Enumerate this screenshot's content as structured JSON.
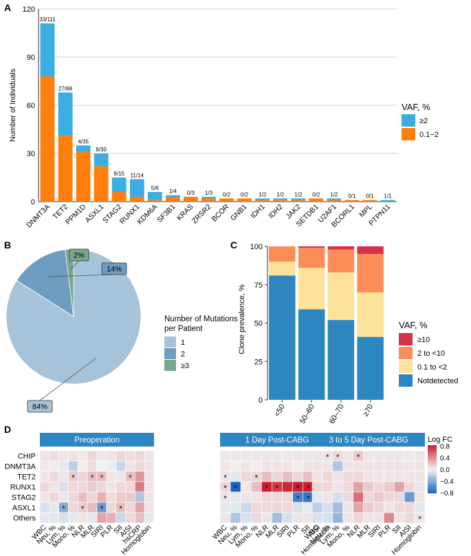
{
  "panels": {
    "a": "A",
    "b": "B",
    "c": "C",
    "d": "D"
  },
  "chart_data": [
    {
      "type": "bar",
      "stacked": true,
      "title": "",
      "xlabel": "",
      "ylabel": "Number of Individuals",
      "ylim": [
        0,
        120
      ],
      "yticks": [
        "0",
        "30",
        "60",
        "90",
        "120"
      ],
      "grid": true,
      "categories": [
        "DNMT3A",
        "TET2",
        "PPM1D",
        "ASXL1",
        "STAG2",
        "RUNX1",
        "KDM6A",
        "SF3B1",
        "KRAS",
        "ZRSR2",
        "BCOR",
        "GNB1",
        "IDH1",
        "IDH2",
        "JAK2",
        "SETDB1",
        "U2AF1",
        "BCORL1",
        "MPL",
        "PTPN11"
      ],
      "labels": [
        "33/111",
        "27/68",
        "4/35",
        "8/30",
        "9/15",
        "11/14",
        "5/6",
        "1/4",
        "0/3",
        "1/3",
        "0/2",
        "0/2",
        "1/2",
        "1/2",
        "1/2",
        "0/2",
        "1/2",
        "0/1",
        "0/1",
        "1/1"
      ],
      "series": [
        {
          "name": "0.1−2",
          "color": "#FF7F0E",
          "values": [
            78,
            41,
            31,
            22,
            6,
            3,
            1,
            3,
            3,
            2,
            2,
            2,
            1,
            1,
            1,
            2,
            1,
            1,
            1,
            0
          ]
        },
        {
          "name": "≥2",
          "color": "#3AAEE0",
          "values": [
            33,
            27,
            4,
            8,
            9,
            11,
            5,
            1,
            0,
            1,
            0,
            0,
            1,
            1,
            1,
            0,
            1,
            0,
            0,
            1
          ]
        }
      ],
      "legend": {
        "title": "VAF, %",
        "entries": [
          "≥2",
          "0.1−2"
        ],
        "position": "right"
      }
    },
    {
      "type": "pie",
      "slices": [
        {
          "label": "1",
          "value": 84,
          "text": "84%",
          "color": "#A6C3DA"
        },
        {
          "label": "2",
          "value": 14,
          "text": "14%",
          "color": "#6E9DC2"
        },
        {
          "label": "≥3",
          "value": 2,
          "text": "2%",
          "color": "#77A88E"
        }
      ],
      "legend": {
        "title_line1": "Number of Mutations",
        "title_line2": "per Patient",
        "position": "right"
      }
    },
    {
      "type": "bar",
      "stacked": true,
      "ylabel": "Clone prevalence, %",
      "ylim": [
        0,
        100
      ],
      "yticks": [
        "0",
        "25",
        "50",
        "75",
        "100"
      ],
      "categories": [
        "<50",
        "50–60",
        "60–70",
        "≥70"
      ],
      "series": [
        {
          "name": "Notdetected",
          "color": "#2E86C1",
          "values": [
            81,
            59,
            52,
            41
          ]
        },
        {
          "name": "0.1 to <2",
          "color": "#FFE29A",
          "values": [
            9,
            27,
            31,
            29
          ]
        },
        {
          "name": "2 to <10",
          "color": "#FC8D59",
          "values": [
            10,
            13,
            15,
            25
          ]
        },
        {
          "name": "≥10",
          "color": "#D7304A",
          "values": [
            0,
            1,
            2,
            5
          ]
        }
      ],
      "legend": {
        "title": "VAF, %",
        "entries": [
          "≥10",
          "2 to <10",
          "0.1 to <2",
          "Notdetected"
        ],
        "position": "right"
      }
    },
    {
      "type": "heatmap",
      "rows": [
        "CHIP",
        "DNMT3A",
        "TET2",
        "RUNX1",
        "STAG2",
        "ASXL1",
        "Others"
      ],
      "legend": {
        "title": "Log FC",
        "ticks": [
          "0.8",
          "0.4",
          "0.0",
          "−0.4",
          "−0.8"
        ],
        "range": [
          -0.8,
          0.8
        ]
      },
      "panels": [
        {
          "title": "Preoperation",
          "columns": [
            "WBC",
            "Neu, %",
            "Lym, %",
            "Mono, %",
            "NLR",
            "MLR",
            "SIRI",
            "PLR",
            "SII",
            "AISI",
            "hsCRP",
            "Homoglobin"
          ],
          "values": [
            [
              0.05,
              0.08,
              0.05,
              0.06,
              0.04,
              0.1,
              0.05,
              0.06,
              0.1,
              0.08,
              0.1,
              0.05
            ],
            [
              0.04,
              0.02,
              -0.05,
              -0.2,
              0.02,
              0.08,
              0.0,
              -0.03,
              -0.15,
              0.05,
              0.1,
              0.05
            ],
            [
              0.05,
              0.1,
              0.05,
              0.15,
              0.1,
              0.2,
              0.2,
              0.05,
              0.05,
              0.2,
              0.35,
              0.05
            ],
            [
              0.1,
              0.05,
              -0.1,
              0.1,
              0.1,
              0.15,
              0.1,
              0.05,
              0.1,
              0.1,
              0.45,
              0.05
            ],
            [
              0.05,
              0.1,
              0.05,
              0.1,
              0.2,
              0.1,
              0.25,
              0.08,
              0.15,
              0.15,
              -0.25,
              0.05
            ],
            [
              -0.1,
              -0.05,
              -0.4,
              0.1,
              0.15,
              0.2,
              -0.5,
              0.1,
              0.2,
              0.1,
              0.3,
              0.05
            ],
            [
              -0.05,
              -0.05,
              -0.1,
              -0.05,
              0.05,
              -0.05,
              0.3,
              0.25,
              -0.15,
              0.1,
              0.2,
              -0.05
            ]
          ],
          "stars": [
            [
              2,
              3
            ],
            [
              2,
              5
            ],
            [
              2,
              6
            ],
            [
              2,
              9
            ],
            [
              5,
              2
            ],
            [
              5,
              4
            ],
            [
              5,
              6
            ],
            [
              5,
              8
            ]
          ]
        },
        {
          "title": "1 Day Post-CABG",
          "columns": [
            "WBC",
            "Neu, %",
            "Lym, %",
            "Mono, %",
            "NLR",
            "MLR",
            "SIRI",
            "PLR",
            "SII",
            "AISI",
            "Homoglobin"
          ],
          "values": [
            [
              0.05,
              0.05,
              0.05,
              0.05,
              0.05,
              0.05,
              0.05,
              0.05,
              0.05,
              0.05,
              0.05
            ],
            [
              0.05,
              0.02,
              0.05,
              0.02,
              0.05,
              0.05,
              0.05,
              0.02,
              0.05,
              0.02,
              0.05
            ],
            [
              0.05,
              -0.05,
              0.1,
              0.1,
              0.2,
              0.1,
              0.2,
              0.1,
              0.2,
              0.1,
              0.05
            ],
            [
              0.1,
              -0.8,
              0.05,
              0.2,
              0.85,
              0.7,
              0.75,
              0.8,
              0.8,
              0.1,
              0.05
            ],
            [
              0.05,
              -0.05,
              0.05,
              0.05,
              0.1,
              0.1,
              0.1,
              -0.65,
              -0.7,
              -0.75,
              0.05
            ],
            [
              -0.05,
              -0.05,
              -0.15,
              0.1,
              0.1,
              0.1,
              0.1,
              -0.1,
              -0.05,
              -0.4,
              0.05
            ],
            [
              0.05,
              -0.25,
              -0.1,
              0.1,
              0.05,
              -0.3,
              -0.1,
              0.05,
              0.05,
              0.1,
              0.05
            ]
          ],
          "stars": [
            [
              0,
              10
            ],
            [
              2,
              0
            ],
            [
              2,
              3
            ],
            [
              3,
              0
            ],
            [
              3,
              1
            ],
            [
              3,
              4
            ],
            [
              3,
              5
            ],
            [
              3,
              7
            ],
            [
              3,
              8
            ],
            [
              4,
              0
            ],
            [
              4,
              7
            ],
            [
              4,
              8
            ],
            [
              4,
              10
            ]
          ]
        },
        {
          "title": "3 to 5 Day Post-CABG",
          "columns": [
            "WBC",
            "Neu, %",
            "Lym, %",
            "Mono, %",
            "NLR",
            "MLR",
            "SIRI",
            "PLR",
            "SII",
            "AISI",
            "Homoglobin"
          ],
          "values": [
            [
              0.05,
              0.05,
              0.1,
              0.05,
              0.15,
              0.05,
              0.05,
              0.05,
              0.05,
              0.05,
              0.05
            ],
            [
              0.05,
              0.05,
              -0.25,
              0.05,
              0.05,
              0.05,
              0.05,
              0.05,
              0.05,
              0.05,
              0.05
            ],
            [
              0.05,
              0.1,
              0.05,
              0.1,
              0.1,
              0.05,
              0.05,
              0.05,
              0.05,
              0.05,
              0.05
            ],
            [
              0.1,
              0.1,
              0.05,
              0.1,
              0.3,
              0.15,
              0.1,
              0.15,
              0.3,
              0.1,
              0.05
            ],
            [
              -0.05,
              0.05,
              -0.1,
              0.1,
              0.5,
              0.1,
              0.15,
              0.1,
              0.1,
              -0.5,
              0.05
            ],
            [
              -0.2,
              -0.1,
              -0.3,
              0.05,
              0.3,
              0.15,
              0.1,
              0.05,
              0.1,
              0.1,
              -0.05
            ],
            [
              -0.1,
              -0.1,
              -0.35,
              0.05,
              0.1,
              0.05,
              0.05,
              0.4,
              0.05,
              0.1,
              0.05
            ]
          ],
          "stars": [
            [
              0,
              1
            ],
            [
              0,
              2
            ],
            [
              0,
              4
            ],
            [
              6,
              10
            ]
          ]
        }
      ]
    }
  ]
}
